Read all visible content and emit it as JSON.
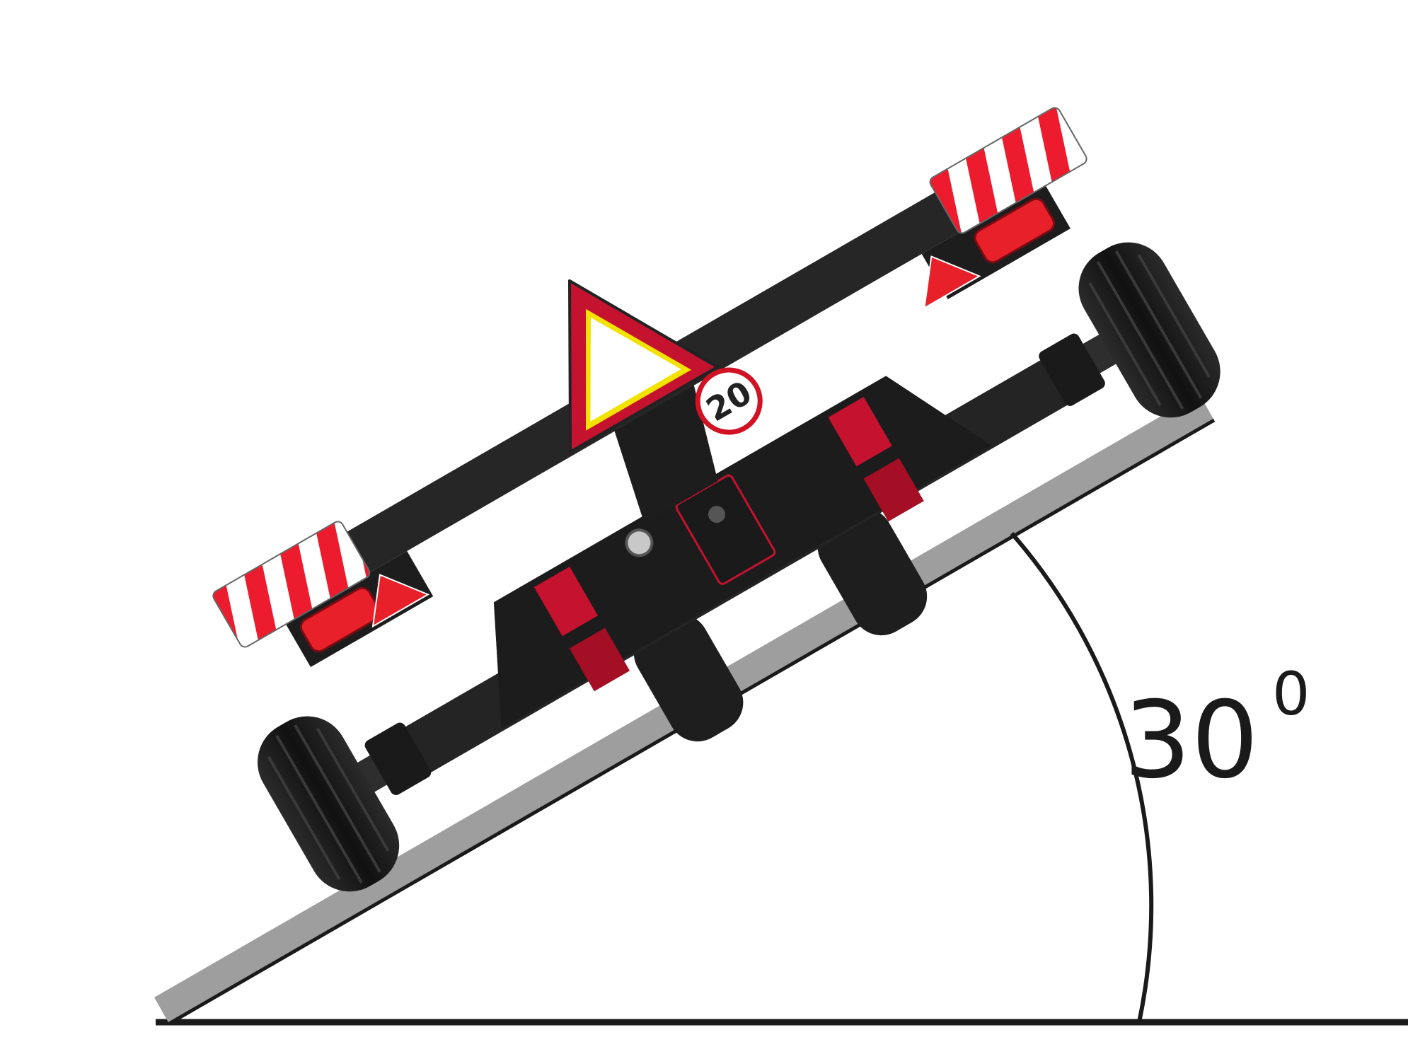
{
  "diagram": {
    "angle": {
      "value": "30",
      "unit": "0"
    },
    "speed_sign": {
      "text": "20"
    },
    "colors": {
      "ground": "#1a1a1a",
      "ramp": "#9e9e9e",
      "frame": "#262626",
      "frame_dark": "#151515",
      "accent_red": "#c4122f",
      "reflector_red": "#e8202a",
      "tire": "#1e1e1e",
      "tire_tread": "#3a3a3a",
      "warning_yellow": "#f2e200"
    },
    "icons": [
      "speed-limit-sign-icon",
      "slow-moving-vehicle-triangle-icon",
      "warning-stripe-board-icon",
      "reflector-triangle-icon",
      "tail-light-icon"
    ]
  }
}
